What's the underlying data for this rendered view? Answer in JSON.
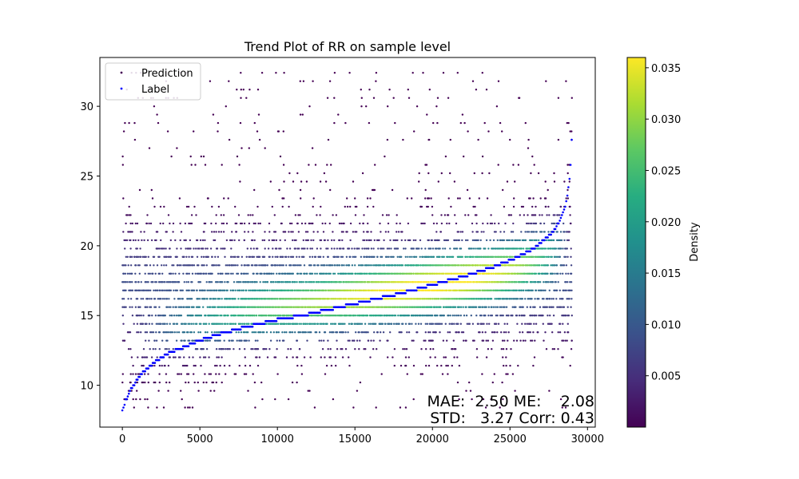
{
  "chart_data": {
    "type": "scatter",
    "title": "Trend Plot of RR on sample level",
    "xlabel": "",
    "ylabel": "",
    "xlim": [
      -1450,
      30500
    ],
    "ylim": [
      7,
      33.5
    ],
    "xticks": [
      0,
      5000,
      10000,
      15000,
      20000,
      25000,
      30000
    ],
    "yticks": [
      10,
      15,
      20,
      25,
      30
    ],
    "grid": false,
    "legend": {
      "placement": "top-left",
      "entries": [
        {
          "name": "Prediction",
          "color": "#440154"
        },
        {
          "name": "Label",
          "color": "#0000ff"
        }
      ]
    },
    "n_samples": 29000,
    "prediction_levels": [
      8.4,
      9.0,
      9.6,
      10.2,
      10.8,
      11.4,
      12.0,
      12.6,
      13.2,
      13.8,
      14.4,
      15.0,
      15.6,
      16.2,
      16.8,
      17.4,
      18.0,
      18.6,
      19.2,
      19.8,
      20.4,
      21.0,
      21.6,
      22.2,
      22.8,
      23.4,
      24.0,
      24.6,
      25.2,
      25.8,
      26.4,
      27.0,
      27.6,
      28.2,
      28.8,
      29.4,
      30.0,
      30.6,
      31.2,
      31.8,
      32.4
    ],
    "label_curve": {
      "x": [
        0,
        200,
        600,
        1200,
        2000,
        3000,
        4500,
        6000,
        8000,
        10000,
        12000,
        14000,
        16000,
        18000,
        20000,
        22000,
        24000,
        25500,
        26500,
        27200,
        27800,
        28200,
        28500,
        28700,
        28850,
        28950,
        29000
      ],
      "y": [
        8.2,
        8.9,
        9.8,
        10.8,
        11.6,
        12.3,
        13.0,
        13.6,
        14.2,
        14.7,
        15.1,
        15.6,
        16.1,
        16.6,
        17.2,
        17.8,
        18.5,
        19.2,
        19.8,
        20.4,
        21.0,
        21.8,
        22.6,
        23.5,
        24.8,
        26.5,
        28.2
      ]
    },
    "colorbar": {
      "label": "Density",
      "min": 0.0,
      "max": 0.036,
      "ticks": [
        0.005,
        0.01,
        0.015,
        0.02,
        0.025,
        0.03,
        0.035
      ],
      "tick_labels": [
        "0.005",
        "0.010",
        "0.015",
        "0.020",
        "0.025",
        "0.030",
        "0.035"
      ],
      "colormap": "viridis"
    },
    "stats": {
      "line1": "MAE:  2.50 ME:    2.08",
      "line2": "STD:   3.27 Corr: 0.43"
    }
  }
}
